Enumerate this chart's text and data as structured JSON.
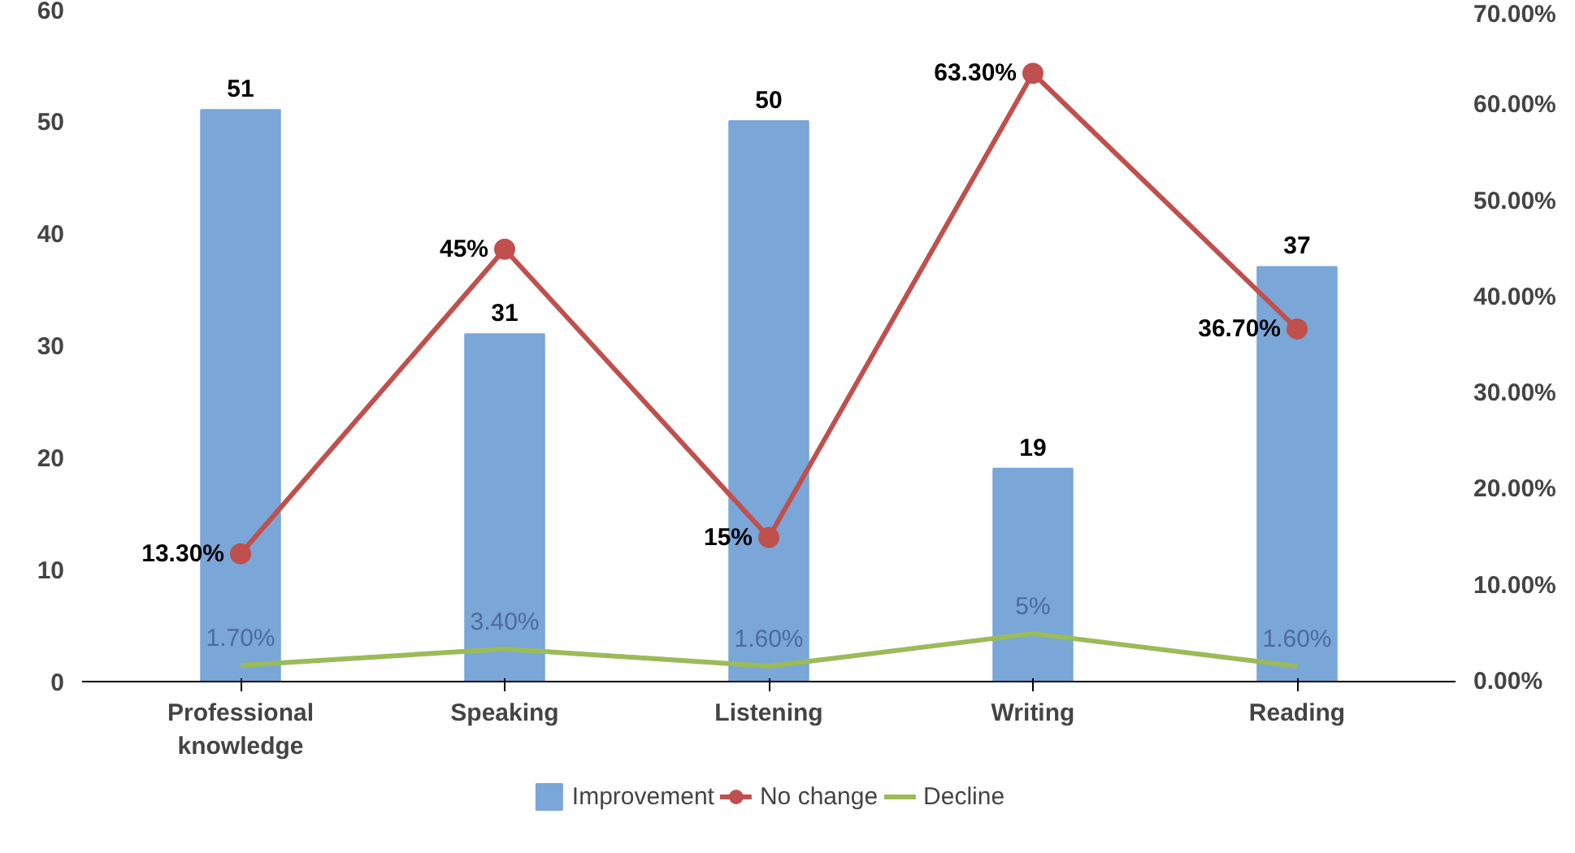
{
  "chart_data": {
    "type": "bar",
    "categories": [
      "Professional\nknowledge",
      "Speaking",
      "Listening",
      "Writing",
      "Reading"
    ],
    "series": [
      {
        "name": "Improvement",
        "color": "#7aa6d8",
        "values": [
          51,
          31,
          50,
          19,
          37
        ],
        "value_labels": [
          "51",
          "31",
          "50",
          "19",
          "37"
        ]
      },
      {
        "name": "No change",
        "type": "line",
        "axis": "y2",
        "color": "#c0504d",
        "marker": "circle",
        "values": [
          13.3,
          45,
          15,
          63.3,
          36.7
        ],
        "value_labels": [
          "13.30%",
          "45%",
          "15%",
          "63.30%",
          "36.70%"
        ]
      },
      {
        "name": "Decline",
        "type": "line",
        "axis": "y2",
        "color": "#9bbb59",
        "marker": "none",
        "values": [
          1.7,
          3.4,
          1.6,
          5,
          1.6
        ],
        "value_labels": [
          "1.70%",
          "3.40%",
          "1.60%",
          "5%",
          "1.60%"
        ]
      }
    ],
    "ylim": [
      0,
      60
    ],
    "yticks": [
      0,
      10,
      20,
      30,
      40,
      50,
      60
    ],
    "y2lim": [
      0,
      70
    ],
    "y2ticks": [
      {
        "value": 0,
        "label": "0.00%"
      },
      {
        "value": 10,
        "label": "10.00%"
      },
      {
        "value": 20,
        "label": "20.00%"
      },
      {
        "value": 30,
        "label": "30.00%"
      },
      {
        "value": 40,
        "label": "40.00%"
      },
      {
        "value": 50,
        "label": "50.00%"
      },
      {
        "value": 60,
        "label": "60.00%"
      },
      {
        "value": 70,
        "label": "70.00%"
      }
    ],
    "legend": "bottom"
  }
}
